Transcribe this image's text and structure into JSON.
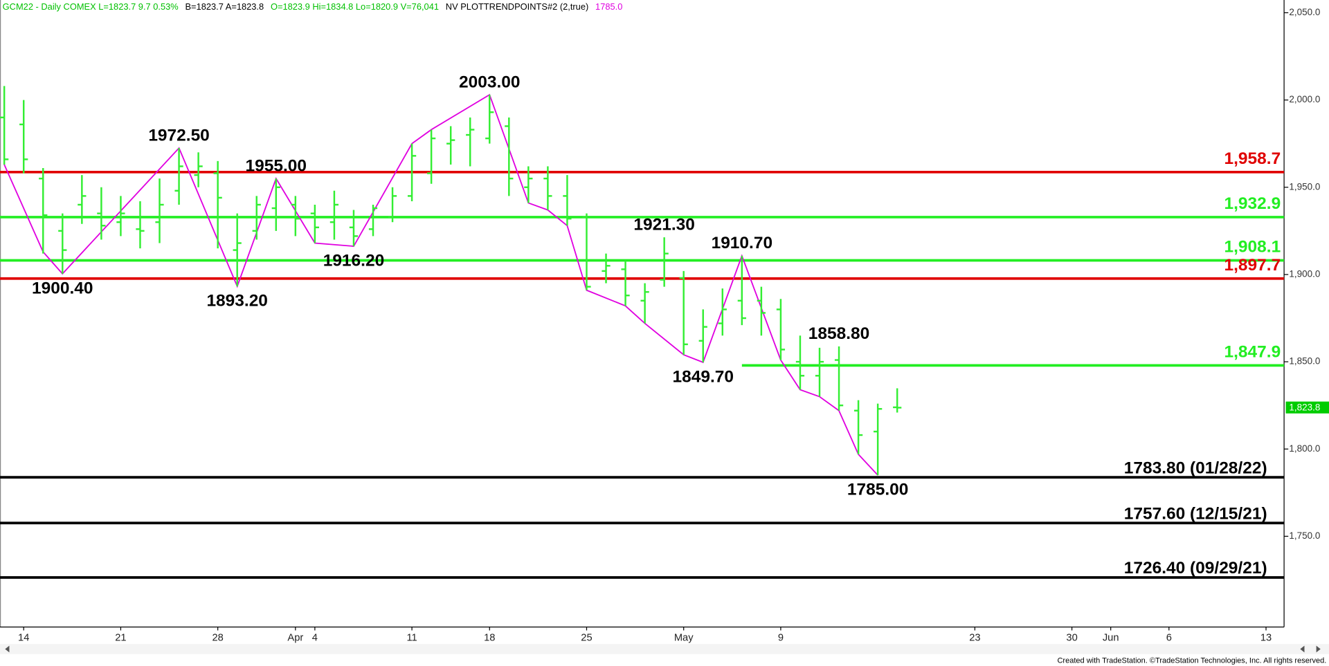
{
  "chart_data": {
    "type": "ohlc",
    "header": [
      {
        "text": "GCM22 - Daily  COMEX  L=1823.7  9.7  0.53%",
        "color": "#00c000"
      },
      {
        "text": "B=1823.7  A=1823.8",
        "color": "#000000"
      },
      {
        "text": "O=1823.9  Hi=1834.8  Lo=1820.9  V=76,041",
        "color": "#00c000"
      },
      {
        "text": "NV  PLOTTRENDPOINTS#2 (2,true)",
        "color": "#000000"
      },
      {
        "text": "1785.0",
        "color": "#e000e0"
      }
    ],
    "color": "#33ee33",
    "x": [
      -1,
      0,
      1,
      2,
      3,
      4,
      5,
      6,
      7,
      8,
      9,
      10,
      11,
      12,
      13,
      14,
      15,
      16,
      17,
      18,
      19,
      20,
      21,
      22,
      23,
      24,
      25,
      26,
      27,
      28,
      29,
      30,
      31,
      32,
      33,
      34,
      35,
      36,
      37,
      38,
      39,
      40,
      41,
      42,
      43,
      44,
      45
    ],
    "open": [
      1990,
      1986,
      1955,
      1925,
      1940,
      1935,
      1930,
      1926,
      1930,
      1948,
      1957,
      1958,
      1914,
      1925,
      1938,
      1940,
      1935,
      1930,
      1927,
      1926,
      1933,
      1945,
      1958,
      1975,
      1980,
      1978,
      1985,
      1950,
      1955,
      1945,
      1933,
      1902,
      1903,
      1885,
      1897,
      1898,
      1862,
      1872,
      1885,
      1885,
      1880,
      1850,
      1842,
      1851,
      1822,
      1810,
      1823.9
    ],
    "high": [
      2008,
      2000,
      1961,
      1935,
      1957,
      1950,
      1945,
      1942,
      1955,
      1972.5,
      1970,
      1965,
      1935,
      1945,
      1955,
      1945,
      1940,
      1948,
      1937,
      1940,
      1950,
      1975,
      1983,
      1985,
      1990,
      2003,
      1990,
      1962,
      1962,
      1957,
      1935,
      1912,
      1908,
      1895,
      1921.3,
      1902,
      1880,
      1892,
      1910.7,
      1893,
      1886,
      1865,
      1858,
      1858.8,
      1828,
      1826,
      1834.8
    ],
    "low": [
      1963,
      1958,
      1912,
      1900.4,
      1929,
      1920,
      1922,
      1915,
      1918,
      1940,
      1950,
      1915,
      1893.2,
      1920,
      1925,
      1922,
      1918,
      1920,
      1916.2,
      1922,
      1930,
      1942,
      1952,
      1963,
      1962,
      1975,
      1945,
      1941,
      1937,
      1928,
      1891,
      1895,
      1882,
      1872,
      1893,
      1854,
      1849.7,
      1865,
      1871,
      1865,
      1851,
      1834,
      1830,
      1822,
      1797,
      1785,
      1820.9
    ],
    "close": [
      1966,
      1966,
      1934,
      1914,
      1945,
      1928,
      1935,
      1925,
      1940,
      1962,
      1962,
      1944,
      1918,
      1940,
      1950,
      1932,
      1927,
      1940,
      1922,
      1938,
      1945,
      1968,
      1978,
      1977,
      1983,
      1993,
      1955,
      1955,
      1945,
      1932,
      1893,
      1905,
      1888,
      1890,
      1912,
      1860,
      1870,
      1880,
      1875,
      1878,
      1857,
      1842,
      1850,
      1825,
      1808,
      1823,
      1823.7
    ],
    "trend": {
      "name": "PLOTTRENDPOINTS#2",
      "color": "#e000e0",
      "x": [
        -1,
        1,
        2,
        8,
        11,
        13,
        15,
        17,
        20,
        21,
        24,
        26,
        27,
        28,
        29,
        31,
        32,
        34,
        35,
        37,
        39,
        40,
        41,
        42,
        43,
        44
      ],
      "values": [
        1963,
        1913,
        1900.4,
        1972.5,
        1893.2,
        1955,
        1918,
        1916.2,
        1975,
        1983,
        2003,
        1941,
        1937,
        1928,
        1891,
        1882,
        1872,
        1854,
        1849.7,
        1910.7,
        1851,
        1834,
        1830,
        1822,
        1797,
        1785
      ]
    },
    "pivots": {
      "x": [
        2,
        8,
        11,
        13,
        17,
        24,
        33,
        35,
        37,
        42,
        44
      ],
      "values": [
        1900.4,
        1972.5,
        1893.2,
        1955,
        1916.2,
        2003,
        1921.3,
        1849.7,
        1910.7,
        1858.8,
        1785
      ],
      "value_labels": [
        "1900.40",
        "1972.50",
        "1893.20",
        "1955.00",
        "1916.20",
        "2003.00",
        "1921.30",
        "1849.70",
        "1910.70",
        "1858.80",
        "1785.00"
      ]
    },
    "levels": [
      {
        "value": 1958.7,
        "label": "1,958.7",
        "color": "#e00000"
      },
      {
        "value": 1932.9,
        "label": "1,932.9",
        "color": "#22ee22"
      },
      {
        "value": 1908.1,
        "label": "1,908.1",
        "color": "#22ee22"
      },
      {
        "value": 1897.7,
        "label": "1,897.7",
        "color": "#e00000"
      },
      {
        "value": 1847.9,
        "label": "1,847.9",
        "color": "#22ee22",
        "from": 37
      },
      {
        "value": 1783.8,
        "label": "1783.80 (01/28/22)",
        "color": "#000000"
      },
      {
        "value": 1757.6,
        "label": "1757.60 (12/15/21)",
        "color": "#000000"
      },
      {
        "value": 1726.4,
        "label": "1726.40 (09/29/21)",
        "color": "#000000"
      }
    ],
    "last": {
      "value": 1823.8,
      "label": "1,823.8",
      "color": "#00cc00"
    },
    "xlim": [
      -1.22,
      64.93
    ],
    "xticks": [
      {
        "value": 0,
        "label": "14"
      },
      {
        "value": 5,
        "label": "21"
      },
      {
        "value": 10,
        "label": "28"
      },
      {
        "value": 14,
        "label": "Apr"
      },
      {
        "value": 15,
        "label": "4"
      },
      {
        "value": 20,
        "label": "11"
      },
      {
        "value": 24,
        "label": "18"
      },
      {
        "value": 29,
        "label": "25"
      },
      {
        "value": 34,
        "label": "May"
      },
      {
        "value": 39,
        "label": "9"
      },
      {
        "value": 49,
        "label": "23"
      },
      {
        "value": 54,
        "label": "30"
      },
      {
        "value": 56,
        "label": "Jun"
      },
      {
        "value": 59,
        "label": "6"
      },
      {
        "value": 64,
        "label": "13"
      }
    ],
    "ylim": [
      1698,
      2057.3
    ],
    "yticks": [
      {
        "value": 1750,
        "label": "1,750.0"
      },
      {
        "value": 1800,
        "label": "1,800.0"
      },
      {
        "value": 1850,
        "label": "1,850.0"
      },
      {
        "value": 1900,
        "label": "1,900.0"
      },
      {
        "value": 1950,
        "label": "1,950.0"
      },
      {
        "value": 2000,
        "label": "2,000.0"
      },
      {
        "value": 2050,
        "label": "2,050.0"
      }
    ],
    "footer": "Created with TradeStation. ©TradeStation Technologies, Inc. All rights reserved."
  }
}
